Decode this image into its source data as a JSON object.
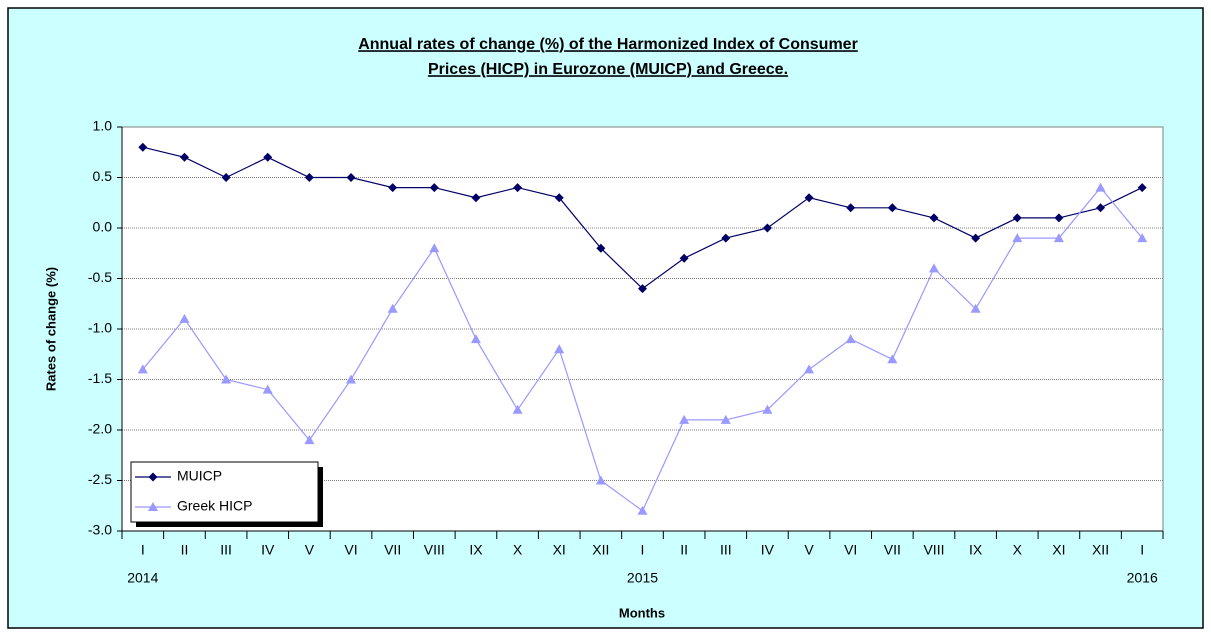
{
  "chart_data": {
    "type": "line",
    "title": [
      "Annual rates of change (%) of the Harmonized Index of Consumer",
      "Prices (HICP) in Eurozone (MUICP) and Greece."
    ],
    "x_label": "Months",
    "y_label": "Rates of change (%)",
    "categories": [
      "I",
      "II",
      "III",
      "IV",
      "V",
      "VI",
      "VII",
      "VIII",
      "IX",
      "X",
      "XI",
      "XII",
      "I",
      "II",
      "III",
      "IV",
      "V",
      "VI",
      "VII",
      "VIII",
      "IX",
      "X",
      "XI",
      "XII",
      "I"
    ],
    "year_labels": [
      "2014",
      null,
      null,
      null,
      null,
      null,
      null,
      null,
      null,
      null,
      null,
      null,
      "2015",
      null,
      null,
      null,
      null,
      null,
      null,
      null,
      null,
      null,
      null,
      null,
      "2016"
    ],
    "series": [
      {
        "name": "MUICP",
        "color": "#000066",
        "marker": "diamond",
        "values": [
          0.8,
          0.7,
          0.5,
          0.7,
          0.5,
          0.5,
          0.4,
          0.4,
          0.3,
          0.4,
          0.3,
          -0.2,
          -0.6,
          -0.3,
          -0.1,
          0.0,
          0.3,
          0.2,
          0.2,
          0.1,
          -0.1,
          0.1,
          0.1,
          0.2,
          0.4
        ]
      },
      {
        "name": "Greek HICP",
        "color": "#9999ff",
        "marker": "triangle",
        "values": [
          -1.4,
          -0.9,
          -1.5,
          -1.6,
          -2.1,
          -1.5,
          -0.8,
          -0.2,
          -1.1,
          -1.8,
          -1.2,
          -2.5,
          -2.8,
          -1.9,
          -1.9,
          -1.8,
          -1.4,
          -1.1,
          -1.3,
          -0.4,
          -0.8,
          -0.1,
          -0.1,
          0.4,
          -0.1
        ]
      }
    ],
    "ylim": [
      -3,
      1
    ],
    "yticks": [
      {
        "value": -3,
        "label": "-3.0"
      },
      -2.5,
      {
        "value": -2,
        "label": "-2.0"
      },
      -1.5,
      {
        "value": -1,
        "label": "-1.0"
      },
      -0.5,
      {
        "value": 0,
        "label": "0.0"
      },
      0.5,
      {
        "value": 1,
        "label": "1.0"
      }
    ],
    "grid": true,
    "legend_position": "lower left"
  }
}
